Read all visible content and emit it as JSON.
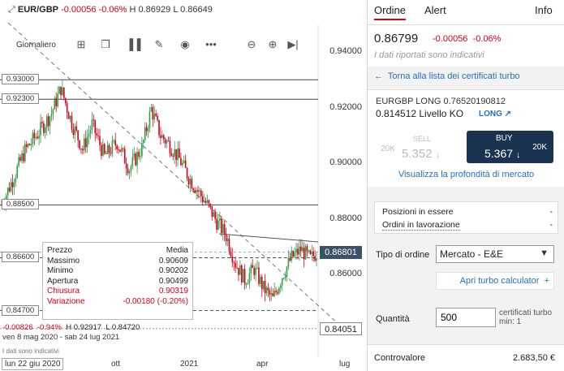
{
  "header": {
    "symbol": "EUR/GBP",
    "change": "-0.00056",
    "change_pct": "-0.06%",
    "high": "H 0.86929",
    "low": "L 0.86649"
  },
  "toolbar": {
    "period": "Giornaliero",
    "icons": [
      "grid-icon",
      "layers-icon",
      "bar-chart-icon",
      "pencil-icon",
      "eye-icon",
      "more-icon",
      "zoom-out-icon",
      "zoom-in-icon",
      "skip-forward-icon"
    ]
  },
  "chart_data": {
    "type": "candlestick",
    "y_ticks": [
      "0.94000",
      "0.92000",
      "0.90000",
      "0.88000",
      "0.86000"
    ],
    "ylim": [
      0.838,
      0.948
    ],
    "x_ticks": [
      "lun 22 giu 2020",
      "ott",
      "2021",
      "apr",
      "lug"
    ],
    "levels": [
      {
        "label": "0.93000",
        "value": 0.93
      },
      {
        "label": "0.92300",
        "value": 0.923
      },
      {
        "label": "0.88500",
        "value": 0.885
      },
      {
        "label": "0.86600",
        "value": 0.866
      },
      {
        "label": "0.84700",
        "value": 0.847
      }
    ],
    "current_price": {
      "label": "0.86801",
      "value": 0.86801
    },
    "cursor_price": {
      "label": "0.84051",
      "value": 0.84051
    },
    "series_points": [
      [
        0,
        0.885
      ],
      [
        15,
        0.9045
      ],
      [
        25,
        0.912
      ],
      [
        32,
        0.918
      ],
      [
        38,
        0.927
      ],
      [
        45,
        0.9145
      ],
      [
        52,
        0.905
      ],
      [
        58,
        0.914
      ],
      [
        66,
        0.9025
      ],
      [
        74,
        0.9075
      ],
      [
        82,
        0.898
      ],
      [
        90,
        0.9055
      ],
      [
        96,
        0.9195
      ],
      [
        102,
        0.91
      ],
      [
        108,
        0.9065
      ],
      [
        114,
        0.9015
      ],
      [
        120,
        0.895
      ],
      [
        126,
        0.89
      ],
      [
        132,
        0.885
      ],
      [
        138,
        0.879
      ],
      [
        144,
        0.874
      ],
      [
        150,
        0.864
      ],
      [
        156,
        0.858
      ],
      [
        162,
        0.862
      ],
      [
        168,
        0.855
      ],
      [
        174,
        0.851
      ],
      [
        180,
        0.8595
      ],
      [
        186,
        0.866
      ],
      [
        192,
        0.869
      ],
      [
        198,
        0.8655
      ],
      [
        202,
        0.868
      ]
    ]
  },
  "tooltip": {
    "col1": "Prezzo",
    "col2": "Media",
    "rows": [
      {
        "label": "Massimo",
        "value": "0.90609"
      },
      {
        "label": "Minimo",
        "value": "0.90202"
      },
      {
        "label": "Apertura",
        "value": "0.90499"
      },
      {
        "label": "Chiusura",
        "value": "0.90319"
      },
      {
        "label": "Variazione",
        "value": "-0.00180 (-0.20%)"
      }
    ]
  },
  "footer": {
    "change": "-0.00826",
    "change_pct": "-0.94%",
    "high": "H 0.92917",
    "low": "L 0.84720",
    "range": "ven 8 mag 2020 - sab 24 lug 2021",
    "note": "I dati sono indicativi"
  },
  "panel": {
    "tabs": [
      "Ordine",
      "Alert",
      "Info"
    ],
    "price": "0.86799",
    "change": "-0.00056",
    "change_pct": "-0.06%",
    "note": "I dati riportati sono indicativi",
    "back_link": "Torna alla lista dei certificati turbo",
    "cert_name": "EURGBP LONG 0.76520190812",
    "cert_ko": "0.814512 Livello KO",
    "cert_dir": "LONG",
    "sell": {
      "label": "SELL",
      "qty": "20K",
      "value": "5.352"
    },
    "buy": {
      "label": "BUY",
      "qty": "20K",
      "value": "5.367"
    },
    "depth_link": "Visualizza la profondità di mercato",
    "positions": "Posizioni in essere",
    "positions_value": "-",
    "orders": "Ordini in lavorazione",
    "orders_value": "-",
    "order_type_label": "Tipo di ordine",
    "order_type": "Mercato - E&E",
    "calc_link": "Apri turbo calculator",
    "quantity_label": "Quantità",
    "quantity": "500",
    "quantity_unit": "certificati turbo",
    "quantity_min": "min: 1",
    "cv_label": "Controvalore",
    "cv_value": "2.683,50 €"
  },
  "colors": {
    "up": "#2e9e44",
    "down": "#d0021b",
    "accent": "#2a6ebb",
    "buy": "#1b3350"
  }
}
